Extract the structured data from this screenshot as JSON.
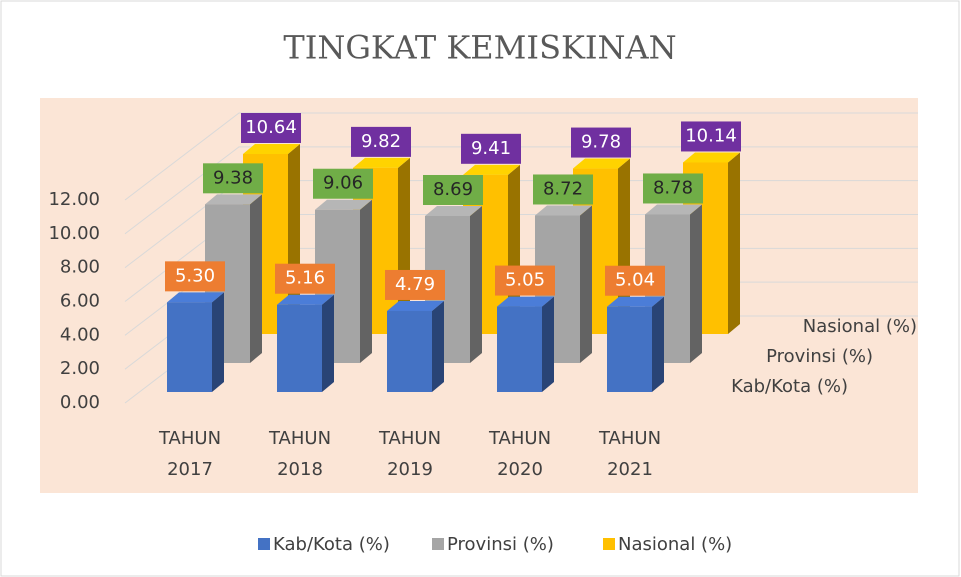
{
  "chart_data": {
    "type": "bar3d",
    "title": "TINGKAT KEMISKINAN",
    "categories": [
      "TAHUN 2017",
      "TAHUN 2018",
      "TAHUN 2019",
      "TAHUN 2020",
      "TAHUN 2021"
    ],
    "series": [
      {
        "name": "Kab/Kota (%)",
        "color": "#4472c4",
        "label_color": "#ed7d31",
        "values": [
          5.3,
          5.16,
          4.79,
          5.05,
          5.04
        ],
        "value_labels": [
          "5.30",
          "5.16",
          "4.79",
          "5.05",
          "5.04"
        ]
      },
      {
        "name": "Provinsi (%)",
        "color": "#a5a5a5",
        "label_color": "#70ad47",
        "values": [
          9.38,
          9.06,
          8.69,
          8.72,
          8.78
        ],
        "value_labels": [
          "9.38",
          "9.06",
          "8.69",
          "8.72",
          "8.78"
        ]
      },
      {
        "name": "Nasional (%)",
        "color": "#ffc000",
        "label_color": "#7030a0",
        "values": [
          10.64,
          9.82,
          9.41,
          9.78,
          10.14
        ],
        "value_labels": [
          "10.64",
          "9.82",
          "9.41",
          "9.78",
          "10.14"
        ]
      }
    ],
    "ylim": [
      0,
      12
    ],
    "yticks": [
      {
        "value": 0,
        "label": "0.00"
      },
      {
        "value": 2,
        "label": "2.00"
      },
      {
        "value": 4,
        "label": "4.00"
      },
      {
        "value": 6,
        "label": "6.00"
      },
      {
        "value": 8,
        "label": "8.00"
      },
      {
        "value": 10,
        "label": "10.00"
      },
      {
        "value": 12,
        "label": "12.00"
      }
    ],
    "grid": true,
    "legend": "bottom"
  }
}
